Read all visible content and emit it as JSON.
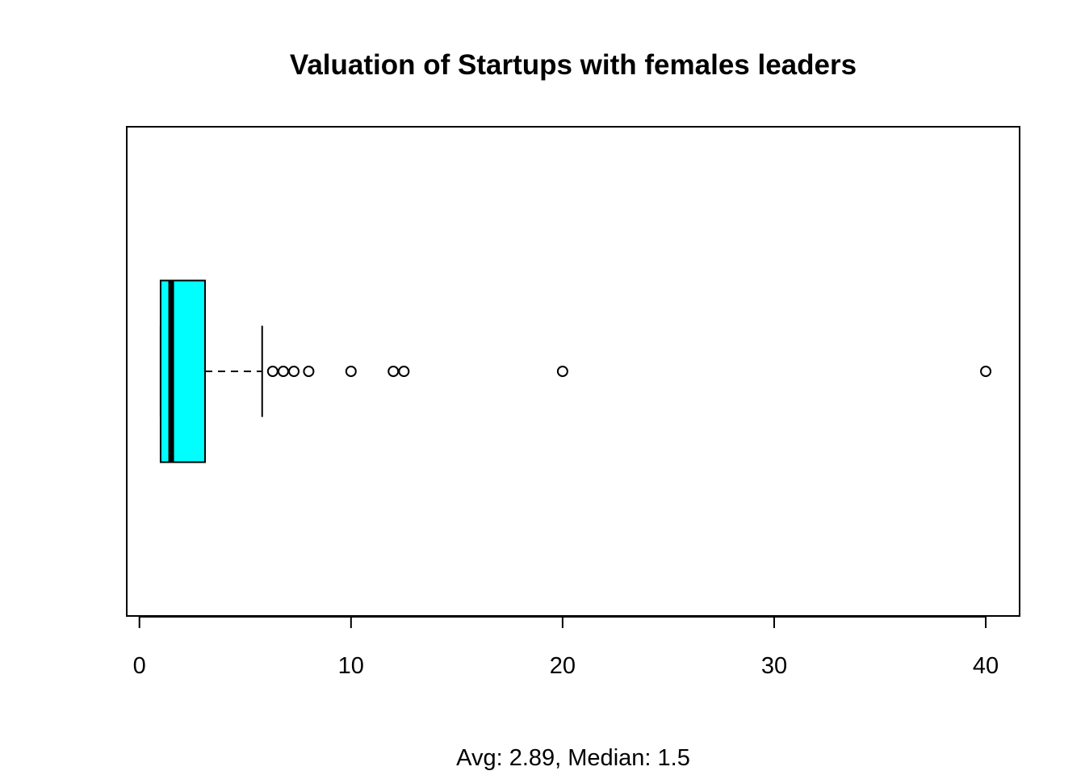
{
  "chart_data": {
    "type": "boxplot",
    "orientation": "horizontal",
    "title": "Valuation of Startups with females leaders",
    "xlabel": "Avg: 2.89, Median: 1.5",
    "ylabel": "",
    "xlim": [
      -0.6,
      41.6
    ],
    "x_ticks": [
      0,
      10,
      20,
      30,
      40
    ],
    "x_tick_labels": [
      "0",
      "10",
      "20",
      "30",
      "40"
    ],
    "box": {
      "q1": 1.0,
      "median": 1.5,
      "q3": 3.1,
      "whisker_low": 1.0,
      "whisker_high": 5.8,
      "fill_color": "#00ffff"
    },
    "outliers": [
      6.3,
      6.8,
      7.3,
      8.0,
      10.0,
      12.0,
      12.5,
      20.0,
      40.0
    ],
    "grid": false,
    "legend": "none"
  }
}
